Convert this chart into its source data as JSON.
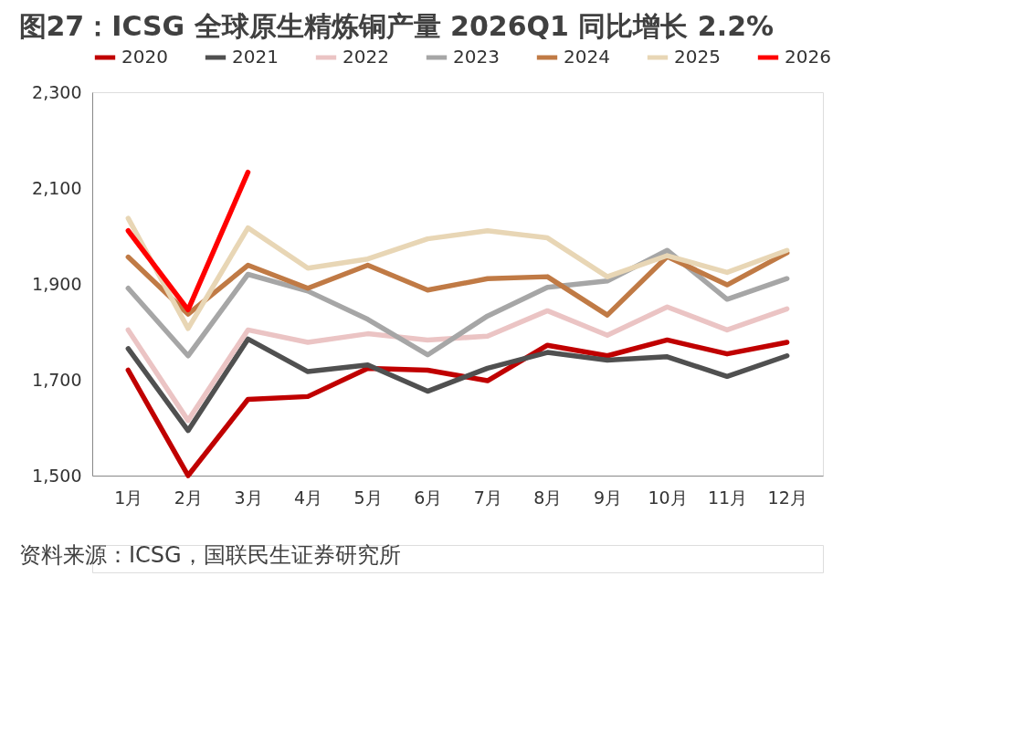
{
  "chart_data": {
    "type": "line",
    "title": "图27：ICSG 全球原生精炼铜产量 2026Q1 同比增长 2.2%",
    "categories": [
      "1月",
      "2月",
      "3月",
      "4月",
      "5月",
      "6月",
      "7月",
      "8月",
      "9月",
      "10月",
      "11月",
      "12月"
    ],
    "series": [
      {
        "name": "2020",
        "color": "#c00000",
        "values": [
          1720,
          1500,
          1659,
          1665,
          1724,
          1720,
          1698,
          1772,
          1750,
          1783,
          1754,
          1778
        ]
      },
      {
        "name": "2021",
        "color": "#505050",
        "values": [
          1765,
          1594,
          1785,
          1717,
          1731,
          1676,
          1724,
          1757,
          1741,
          1748,
          1707,
          1750
        ]
      },
      {
        "name": "2022",
        "color": "#ebc4c4",
        "values": [
          1804,
          1615,
          1804,
          1778,
          1796,
          1783,
          1791,
          1844,
          1793,
          1852,
          1804,
          1848
        ]
      },
      {
        "name": "2023",
        "color": "#a6a6a6",
        "values": [
          1891,
          1750,
          1920,
          1885,
          1826,
          1752,
          1833,
          1893,
          1906,
          1970,
          1868,
          1911
        ]
      },
      {
        "name": "2024",
        "color": "#c07a45",
        "values": [
          1956,
          1837,
          1939,
          1891,
          1939,
          1887,
          1911,
          1915,
          1835,
          1957,
          1898,
          1965
        ]
      },
      {
        "name": "2025",
        "color": "#e8d6b5",
        "values": [
          2037,
          1807,
          2017,
          1933,
          1952,
          1994,
          2011,
          1996,
          1915,
          1959,
          1924,
          1970
        ]
      },
      {
        "name": "2026",
        "color": "#ff0000",
        "values": [
          2011,
          1846,
          2133,
          null,
          null,
          null,
          null,
          null,
          null,
          null,
          null,
          null
        ]
      }
    ],
    "ylim": [
      1500,
      2300
    ],
    "yticks": [
      {
        "value": 1500,
        "label": "1,500"
      },
      {
        "value": 1700,
        "label": "1,700"
      },
      {
        "value": 1900,
        "label": "1,900"
      },
      {
        "value": 2100,
        "label": "2,100"
      },
      {
        "value": 2300,
        "label": "2,300"
      }
    ],
    "grid": false,
    "legend": "top",
    "marker": "none",
    "line_style": "solid",
    "annotations": [
      "资料来源：ICSG，国联民生证券研究所"
    ]
  }
}
